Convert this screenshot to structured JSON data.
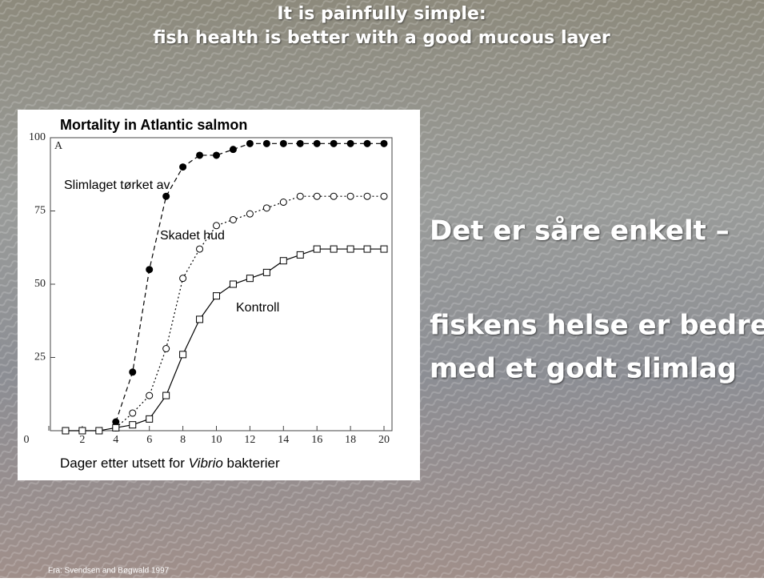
{
  "slide": {
    "title_lines": [
      "It is painfully simple:",
      "fish health is better with a good mucous layer"
    ],
    "body_lines": [
      "Det er såre enkelt –",
      "fiskens helse er bedre",
      "med et godt slimlag"
    ],
    "source": "Fra: Svendsen and Bøgwald 1997"
  },
  "chart_data": {
    "type": "line",
    "title": "Mortality in Atlantic salmon",
    "panel_label": "A",
    "xlabel": [
      "Dager etter utsett for ",
      "Vibrio",
      " bakterier"
    ],
    "x": [
      1,
      2,
      3,
      4,
      5,
      6,
      7,
      8,
      9,
      10,
      11,
      12,
      13,
      14,
      15,
      16,
      17,
      18,
      19,
      20
    ],
    "series": [
      {
        "name": "Slimlaget tørket av",
        "color": "#000000",
        "marker": "filled-circle",
        "dash": "dashed",
        "values": [
          null,
          null,
          null,
          3,
          20,
          55,
          80,
          90,
          94,
          94,
          96,
          98,
          98,
          98,
          98,
          98,
          98,
          98,
          98,
          98
        ]
      },
      {
        "name": "Skadet hud",
        "color": "#000000",
        "marker": "open-circle",
        "dash": "dotted",
        "values": [
          null,
          null,
          null,
          1,
          6,
          12,
          28,
          52,
          62,
          70,
          72,
          74,
          76,
          78,
          80,
          80,
          80,
          80,
          80,
          80
        ]
      },
      {
        "name": "Kontroll",
        "color": "#000000",
        "marker": "open-square",
        "dash": "solid",
        "values": [
          0,
          0,
          0,
          1,
          2,
          4,
          12,
          26,
          38,
          46,
          50,
          52,
          54,
          58,
          60,
          62,
          62,
          62,
          62,
          62
        ]
      }
    ],
    "xlim": [
      0,
      20
    ],
    "ylim": [
      0,
      100
    ],
    "xticks": [
      0,
      2,
      4,
      6,
      8,
      10,
      12,
      14,
      16,
      18,
      20
    ],
    "yticks": [
      25,
      50,
      75,
      100
    ]
  }
}
